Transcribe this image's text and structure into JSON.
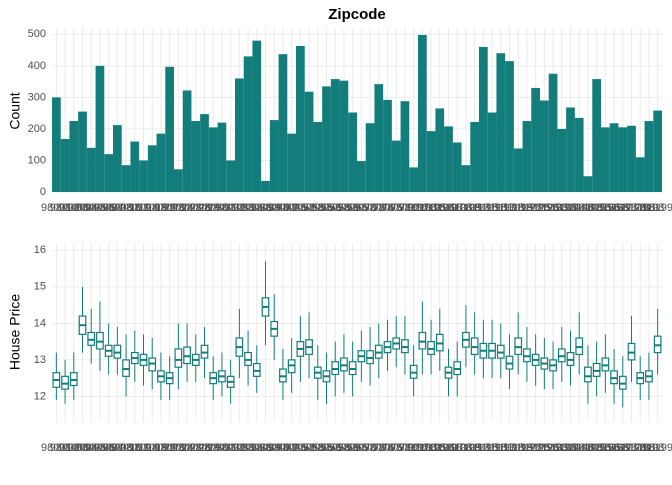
{
  "chart_data": [
    {
      "type": "bar",
      "title": "Zipcode",
      "ylabel": "Count",
      "color": "#127d7a",
      "grid": true,
      "categories": [
        "98001",
        "98002",
        "98003",
        "98004",
        "98005",
        "98006",
        "98007",
        "98008",
        "98010",
        "98011",
        "98014",
        "98019",
        "98022",
        "98023",
        "98024",
        "98027",
        "98028",
        "98029",
        "98030",
        "98031",
        "98032",
        "98033",
        "98034",
        "98038",
        "98039",
        "98040",
        "98042",
        "98045",
        "98052",
        "98053",
        "98055",
        "98056",
        "98058",
        "98059",
        "98065",
        "98070",
        "98072",
        "98074",
        "98075",
        "98077",
        "98092",
        "98102",
        "98103",
        "98105",
        "98106",
        "98107",
        "98108",
        "98109",
        "98112",
        "98115",
        "98116",
        "98117",
        "98118",
        "98119",
        "98122",
        "98125",
        "98126",
        "98133",
        "98136",
        "98144",
        "98146",
        "98148",
        "98155",
        "98166",
        "98168",
        "98177",
        "98178",
        "98188",
        "98198",
        "98199"
      ],
      "values": [
        300,
        168,
        225,
        255,
        140,
        400,
        120,
        212,
        85,
        160,
        100,
        148,
        185,
        397,
        72,
        322,
        225,
        247,
        205,
        220,
        100,
        360,
        430,
        480,
        35,
        228,
        437,
        185,
        463,
        318,
        222,
        335,
        358,
        353,
        252,
        98,
        218,
        342,
        292,
        163,
        288,
        78,
        498,
        193,
        265,
        208,
        157,
        85,
        222,
        460,
        252,
        440,
        415,
        138,
        225,
        330,
        290,
        375,
        200,
        268,
        235,
        50,
        358,
        205,
        218,
        205,
        210,
        110,
        225,
        258
      ],
      "ylim": [
        0,
        520
      ],
      "yticks": [
        0,
        100,
        200,
        300,
        400,
        500
      ]
    },
    {
      "type": "box",
      "ylabel": "House Price",
      "color": "#127d7a",
      "grid": true,
      "categories": [
        "98001",
        "98002",
        "98003",
        "98004",
        "98005",
        "98006",
        "98007",
        "98008",
        "98010",
        "98011",
        "98014",
        "98019",
        "98022",
        "98023",
        "98024",
        "98027",
        "98028",
        "98029",
        "98030",
        "98031",
        "98032",
        "98033",
        "98034",
        "98038",
        "98039",
        "98040",
        "98042",
        "98045",
        "98052",
        "98053",
        "98055",
        "98056",
        "98058",
        "98059",
        "98065",
        "98070",
        "98072",
        "98074",
        "98075",
        "98077",
        "98092",
        "98102",
        "98103",
        "98105",
        "98106",
        "98107",
        "98108",
        "98109",
        "98112",
        "98115",
        "98116",
        "98117",
        "98118",
        "98119",
        "98122",
        "98125",
        "98126",
        "98133",
        "98136",
        "98144",
        "98146",
        "98148",
        "98155",
        "98166",
        "98168",
        "98177",
        "98178",
        "98188",
        "98198",
        "98199"
      ],
      "boxes": [
        [
          11.9,
          12.25,
          12.45,
          12.65,
          13.2
        ],
        [
          11.8,
          12.2,
          12.35,
          12.55,
          13.0
        ],
        [
          11.9,
          12.3,
          12.45,
          12.65,
          13.2
        ],
        [
          13.2,
          13.7,
          13.95,
          14.2,
          15.0
        ],
        [
          12.9,
          13.4,
          13.55,
          13.75,
          14.4
        ],
        [
          12.7,
          13.3,
          13.5,
          13.75,
          14.6
        ],
        [
          12.6,
          13.1,
          13.25,
          13.4,
          14.0
        ],
        [
          12.6,
          13.05,
          13.2,
          13.4,
          13.9
        ],
        [
          12.0,
          12.55,
          12.75,
          13.0,
          13.7
        ],
        [
          12.4,
          12.9,
          13.05,
          13.2,
          13.8
        ],
        [
          12.3,
          12.85,
          13.0,
          13.15,
          13.7
        ],
        [
          12.2,
          12.7,
          12.9,
          13.05,
          13.6
        ],
        [
          11.9,
          12.4,
          12.55,
          12.7,
          13.2
        ],
        [
          11.9,
          12.35,
          12.5,
          12.65,
          13.1
        ],
        [
          12.2,
          12.8,
          13.0,
          13.3,
          14.0
        ],
        [
          12.4,
          12.9,
          13.1,
          13.35,
          14.0
        ],
        [
          12.4,
          12.85,
          13.0,
          13.15,
          13.7
        ],
        [
          12.5,
          13.05,
          13.2,
          13.4,
          13.9
        ],
        [
          11.9,
          12.35,
          12.5,
          12.65,
          13.1
        ],
        [
          12.0,
          12.4,
          12.55,
          12.7,
          13.2
        ],
        [
          11.8,
          12.25,
          12.4,
          12.55,
          13.0
        ],
        [
          12.5,
          13.1,
          13.35,
          13.6,
          14.4
        ],
        [
          12.3,
          12.85,
          13.0,
          13.2,
          13.8
        ],
        [
          12.1,
          12.55,
          12.7,
          12.9,
          13.4
        ],
        [
          13.4,
          14.2,
          14.45,
          14.7,
          15.7
        ],
        [
          13.0,
          13.65,
          13.85,
          14.05,
          14.8
        ],
        [
          11.9,
          12.4,
          12.55,
          12.75,
          13.3
        ],
        [
          12.1,
          12.65,
          12.85,
          13.0,
          13.6
        ],
        [
          12.4,
          13.1,
          13.3,
          13.5,
          14.2
        ],
        [
          12.5,
          13.15,
          13.35,
          13.55,
          14.3
        ],
        [
          11.9,
          12.5,
          12.65,
          12.8,
          13.4
        ],
        [
          11.8,
          12.4,
          12.55,
          12.7,
          13.2
        ],
        [
          12.0,
          12.6,
          12.75,
          12.95,
          13.5
        ],
        [
          12.1,
          12.7,
          12.85,
          13.05,
          13.7
        ],
        [
          12.0,
          12.6,
          12.75,
          12.95,
          13.5
        ],
        [
          12.4,
          12.95,
          13.1,
          13.25,
          13.8
        ],
        [
          12.3,
          12.9,
          13.05,
          13.25,
          13.9
        ],
        [
          12.5,
          13.05,
          13.2,
          13.4,
          14.0
        ],
        [
          12.7,
          13.2,
          13.35,
          13.5,
          14.1
        ],
        [
          12.8,
          13.3,
          13.45,
          13.6,
          14.2
        ],
        [
          12.6,
          13.2,
          13.35,
          13.55,
          14.2
        ],
        [
          12.0,
          12.5,
          12.65,
          12.85,
          13.4
        ],
        [
          12.6,
          13.3,
          13.5,
          13.75,
          14.6
        ],
        [
          12.6,
          13.15,
          13.3,
          13.5,
          14.1
        ],
        [
          12.7,
          13.25,
          13.45,
          13.7,
          14.4
        ],
        [
          12.0,
          12.5,
          12.65,
          12.8,
          13.3
        ],
        [
          12.0,
          12.6,
          12.75,
          12.95,
          13.5
        ],
        [
          12.8,
          13.35,
          13.55,
          13.75,
          14.5
        ],
        [
          12.6,
          13.15,
          13.35,
          13.6,
          14.3
        ],
        [
          12.5,
          13.05,
          13.25,
          13.45,
          14.1
        ],
        [
          12.5,
          13.05,
          13.25,
          13.45,
          14.1
        ],
        [
          12.5,
          13.05,
          13.2,
          13.4,
          14.0
        ],
        [
          12.2,
          12.75,
          12.9,
          13.1,
          13.7
        ],
        [
          12.6,
          13.15,
          13.35,
          13.6,
          14.3
        ],
        [
          12.4,
          12.95,
          13.1,
          13.3,
          13.9
        ],
        [
          12.3,
          12.85,
          13.0,
          13.15,
          13.7
        ],
        [
          12.2,
          12.75,
          12.9,
          13.05,
          13.6
        ],
        [
          12.2,
          12.7,
          12.85,
          13.0,
          13.5
        ],
        [
          12.4,
          12.95,
          13.1,
          13.3,
          13.9
        ],
        [
          12.3,
          12.85,
          13.0,
          13.2,
          13.8
        ],
        [
          12.6,
          13.15,
          13.35,
          13.6,
          14.3
        ],
        [
          11.8,
          12.4,
          12.55,
          12.8,
          13.4
        ],
        [
          12.0,
          12.55,
          12.7,
          12.9,
          13.5
        ],
        [
          12.1,
          12.7,
          12.85,
          13.05,
          13.7
        ],
        [
          11.8,
          12.35,
          12.5,
          12.7,
          13.3
        ],
        [
          11.7,
          12.2,
          12.35,
          12.55,
          13.1
        ],
        [
          12.4,
          13.0,
          13.2,
          13.45,
          14.2
        ],
        [
          11.9,
          12.35,
          12.5,
          12.65,
          13.1
        ],
        [
          11.9,
          12.4,
          12.55,
          12.7,
          13.2
        ],
        [
          12.6,
          13.2,
          13.4,
          13.65,
          14.4
        ]
      ],
      "ylim": [
        11.3,
        16.2
      ],
      "yticks": [
        12,
        13,
        14,
        15,
        16
      ]
    }
  ]
}
